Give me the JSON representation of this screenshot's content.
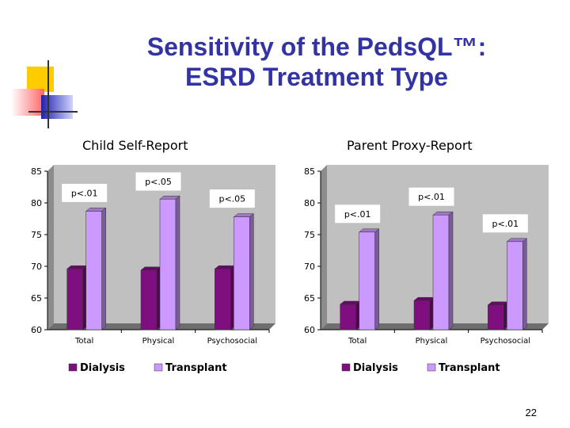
{
  "slide": {
    "title_line1": "Sensitivity of the PedsQL™:",
    "title_line2": "ESRD Treatment Type",
    "page_number": "22"
  },
  "colors": {
    "title": "#3333a3",
    "dialysis": "#7f0f7f",
    "transplant": "#cc99ff",
    "plot_background": "#c0c0c0"
  },
  "chart_data": [
    {
      "type": "bar",
      "title": "Child Self-Report",
      "categories": [
        "Total",
        "Physical",
        "Psychosocial"
      ],
      "series": [
        {
          "name": "Dialysis",
          "values": [
            69.6,
            69.4,
            69.6
          ]
        },
        {
          "name": "Transplant",
          "values": [
            78.7,
            80.6,
            77.8
          ]
        }
      ],
      "annotations": [
        "p<.01",
        "p<.05",
        "p<.05"
      ],
      "ylim": [
        60,
        85
      ],
      "yticks": [
        60,
        65,
        70,
        75,
        80,
        85
      ],
      "grid": false,
      "legend": "bottom"
    },
    {
      "type": "bar",
      "title": "Parent Proxy-Report",
      "categories": [
        "Total",
        "Physical",
        "Psychosocial"
      ],
      "series": [
        {
          "name": "Dialysis",
          "values": [
            64.0,
            64.6,
            63.9
          ]
        },
        {
          "name": "Transplant",
          "values": [
            75.4,
            78.1,
            73.9
          ]
        }
      ],
      "annotations": [
        "p<.01",
        "p<.01",
        "p<.01"
      ],
      "ylim": [
        60,
        85
      ],
      "yticks": [
        60,
        65,
        70,
        75,
        80,
        85
      ],
      "grid": false,
      "legend": "bottom"
    }
  ]
}
